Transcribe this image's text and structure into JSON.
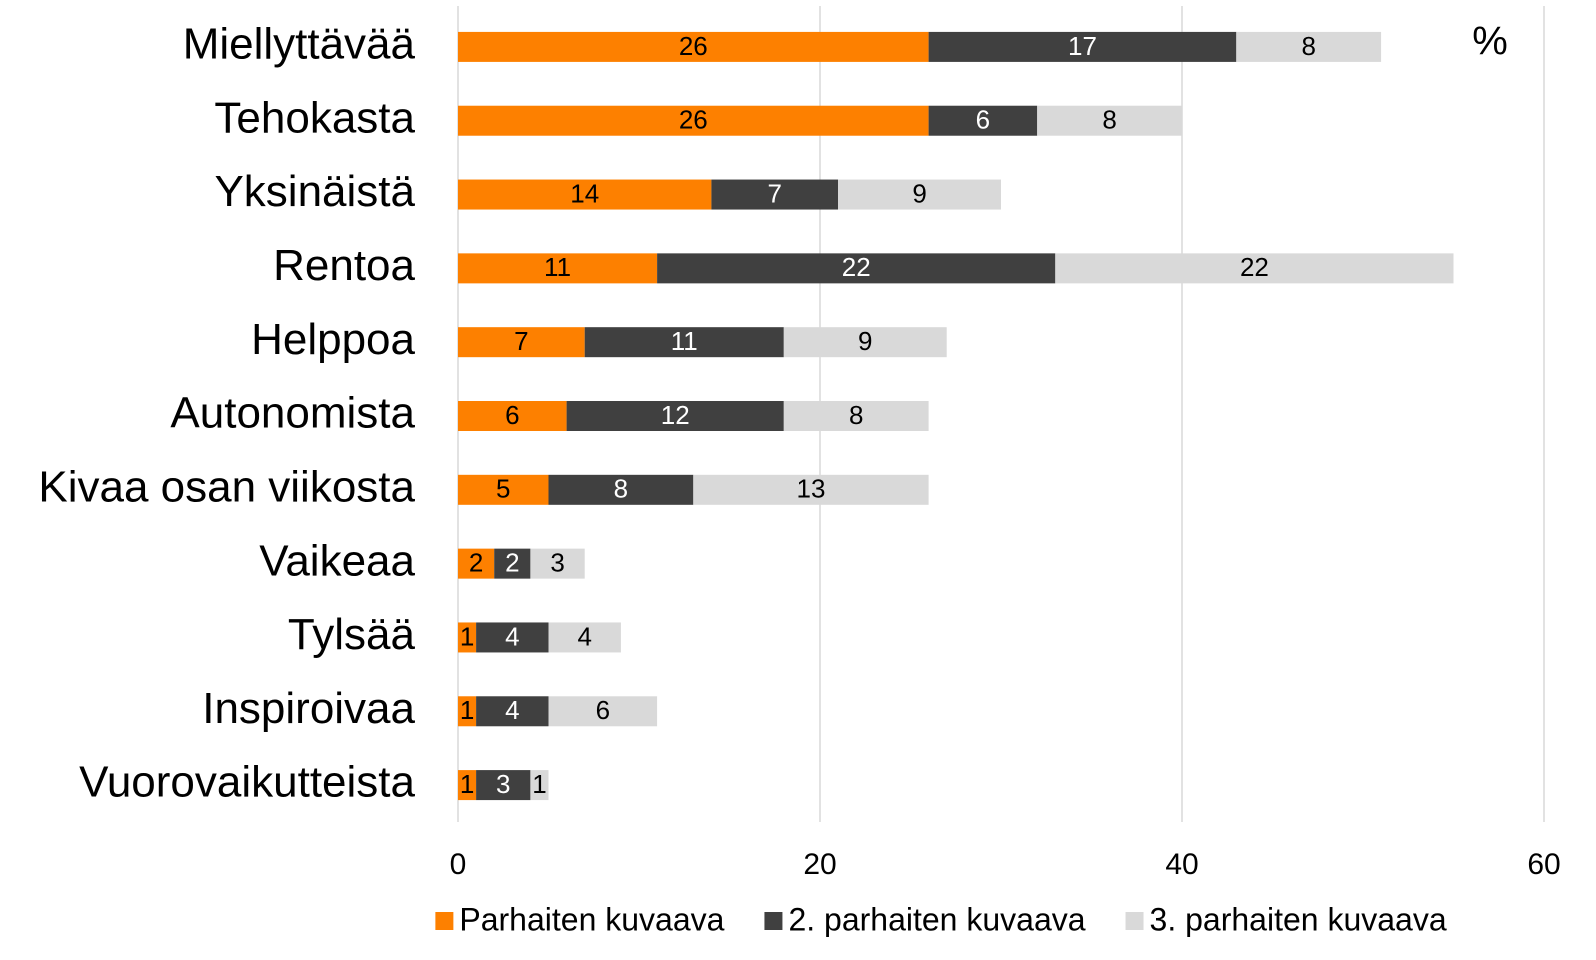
{
  "chart_data": {
    "type": "stacked-bar-horizontal",
    "annotation": "%",
    "categories": [
      "Miellyttävää",
      "Tehokasta",
      "Yksinäistä",
      "Rentoa",
      "Helppoa",
      "Autonomista",
      "Kivaa osan viikosta",
      "Vaikeaa",
      "Tylsää",
      "Inspiroivaa",
      "Vuorovaikutteista"
    ],
    "series": [
      {
        "name": "Parhaiten kuvaava",
        "color": "#fd8000",
        "values": [
          26,
          26,
          14,
          11,
          7,
          6,
          5,
          2,
          1,
          1,
          1
        ]
      },
      {
        "name": "2. parhaiten kuvaava",
        "color": "#404040",
        "values": [
          17,
          6,
          7,
          22,
          11,
          12,
          8,
          2,
          4,
          4,
          3
        ]
      },
      {
        "name": "3. parhaiten kuvaava",
        "color": "#d9d9d9",
        "values": [
          8,
          8,
          9,
          22,
          9,
          8,
          13,
          3,
          4,
          6,
          1
        ]
      }
    ],
    "xlim": [
      0,
      60
    ],
    "xticks": [
      0,
      20,
      40,
      60
    ],
    "grid": true,
    "legend": "bottom"
  }
}
